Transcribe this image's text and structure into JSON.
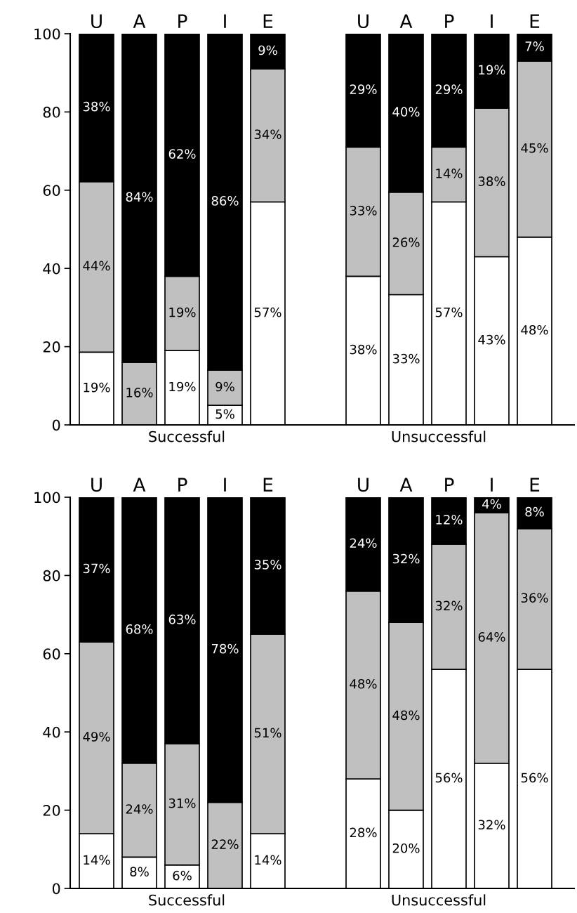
{
  "chart_data": [
    {
      "type": "bar",
      "stacked": true,
      "xlabel": "Successful",
      "categories": [
        "U",
        "A",
        "P",
        "I",
        "E"
      ],
      "ylim": [
        0,
        100
      ],
      "yticks": [
        0,
        20,
        40,
        60,
        80,
        100
      ],
      "grid": false,
      "series": [
        {
          "color": "#ffffff",
          "values": [
            18.6,
            0,
            19,
            5,
            57
          ],
          "value_labels": [
            "19%",
            null,
            "19%",
            "5%",
            "57%"
          ]
        },
        {
          "color": "#c0c0c0",
          "values": [
            43.6,
            16,
            19,
            9,
            34
          ],
          "value_labels": [
            "44%",
            "16%",
            "19%",
            "9%",
            "34%"
          ]
        },
        {
          "color": "#000000",
          "values": [
            37.8,
            84,
            62,
            86,
            9
          ],
          "value_labels": [
            "38%",
            "84%",
            "62%",
            "86%",
            "9%"
          ]
        }
      ]
    },
    {
      "type": "bar",
      "stacked": true,
      "xlabel": "Unsuccessful",
      "categories": [
        "U",
        "A",
        "P",
        "I",
        "E"
      ],
      "ylim": [
        0,
        100
      ],
      "yticks": [
        0,
        20,
        40,
        60,
        80,
        100
      ],
      "tick_labels": "x",
      "grid": false,
      "series": [
        {
          "color": "#ffffff",
          "values": [
            38,
            33.3,
            57,
            43,
            48
          ],
          "value_labels": [
            "38%",
            "33%",
            "57%",
            "43%",
            "48%"
          ]
        },
        {
          "color": "#c0c0c0",
          "values": [
            33,
            26.2,
            14,
            38,
            45
          ],
          "value_labels": [
            "33%",
            "26%",
            "14%",
            "38%",
            "45%"
          ]
        },
        {
          "color": "#000000",
          "values": [
            29,
            40.5,
            29,
            19,
            7
          ],
          "value_labels": [
            "29%",
            "40%",
            "29%",
            "19%",
            "7%"
          ]
        }
      ]
    },
    {
      "type": "bar",
      "stacked": true,
      "xlabel": "Successful",
      "categories": [
        "U",
        "A",
        "P",
        "I",
        "E"
      ],
      "ylim": [
        0,
        100
      ],
      "yticks": [
        0,
        20,
        40,
        60,
        80,
        100
      ],
      "grid": false,
      "series": [
        {
          "color": "#ffffff",
          "values": [
            14,
            8,
            6,
            0,
            14
          ],
          "value_labels": [
            "14%",
            "8%",
            "6%",
            null,
            "14%"
          ]
        },
        {
          "color": "#c0c0c0",
          "values": [
            49,
            24,
            31,
            22,
            51
          ],
          "value_labels": [
            "49%",
            "24%",
            "31%",
            "22%",
            "51%"
          ]
        },
        {
          "color": "#000000",
          "values": [
            37,
            68,
            63,
            78,
            35
          ],
          "value_labels": [
            "37%",
            "68%",
            "63%",
            "78%",
            "35%"
          ]
        }
      ]
    },
    {
      "type": "bar",
      "stacked": true,
      "xlabel": "Unsuccessful",
      "categories": [
        "U",
        "A",
        "P",
        "I",
        "E"
      ],
      "ylim": [
        0,
        100
      ],
      "yticks": [
        0,
        20,
        40,
        60,
        80,
        100
      ],
      "tick_labels": "x",
      "grid": false,
      "series": [
        {
          "color": "#ffffff",
          "values": [
            28,
            20,
            56,
            32,
            56
          ],
          "value_labels": [
            "28%",
            "20%",
            "56%",
            "32%",
            "56%"
          ]
        },
        {
          "color": "#c0c0c0",
          "values": [
            48,
            48,
            32,
            64,
            36
          ],
          "value_labels": [
            "48%",
            "48%",
            "32%",
            "64%",
            "36%"
          ]
        },
        {
          "color": "#000000",
          "values": [
            24,
            32,
            12,
            4,
            8
          ],
          "value_labels": [
            "24%",
            "32%",
            "12%",
            "4%",
            "8%"
          ]
        }
      ]
    }
  ]
}
